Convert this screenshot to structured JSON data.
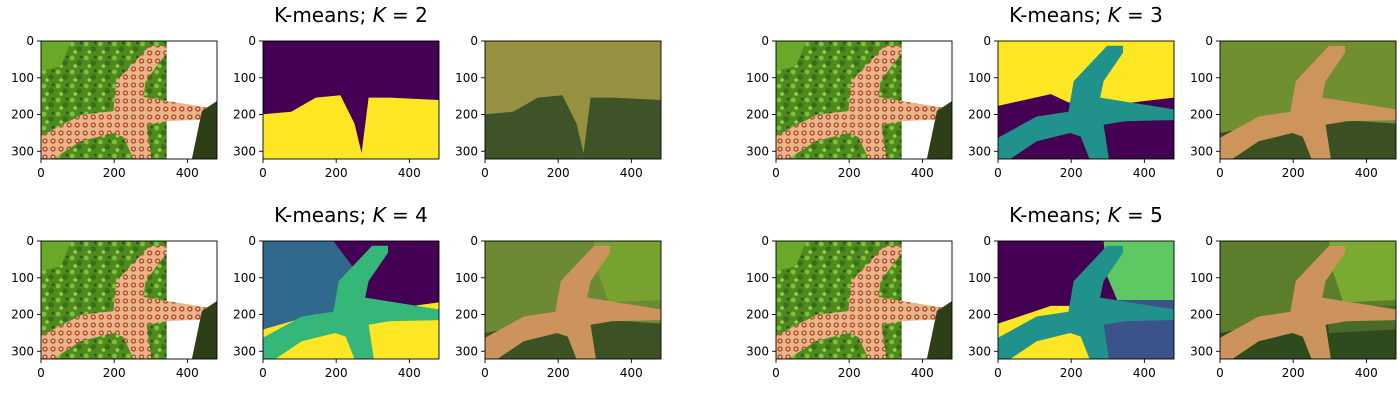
{
  "figure": {
    "groups": [
      {
        "title_prefix": "K-means; ",
        "title_var": "K",
        "title_eq": " = ",
        "title_k": "2"
      },
      {
        "title_prefix": "K-means; ",
        "title_var": "K",
        "title_eq": " = ",
        "title_k": "3"
      },
      {
        "title_prefix": "K-means; ",
        "title_var": "K",
        "title_eq": " = ",
        "title_k": "4"
      },
      {
        "title_prefix": "K-means; ",
        "title_var": "K",
        "title_eq": " = ",
        "title_k": "5"
      }
    ]
  },
  "chart_data": [
    {
      "type": "heatmap",
      "panel": "original image (K=2 group)",
      "image": "starfish-photo",
      "xticks": [
        "0",
        "200",
        "400"
      ],
      "yticks": [
        "0",
        "100",
        "200",
        "300"
      ],
      "xlim": [
        0,
        481
      ],
      "ylim": [
        321,
        0
      ]
    },
    {
      "type": "heatmap",
      "panel": "cluster labels K=2",
      "image": "label-map",
      "xticks": [
        "0",
        "200",
        "400"
      ],
      "yticks": [
        "0",
        "100",
        "200",
        "300"
      ],
      "xlim": [
        0,
        481
      ],
      "ylim": [
        321,
        0
      ],
      "colors": [
        "#440154",
        "#fde725"
      ]
    },
    {
      "type": "heatmap",
      "panel": "cluster means K=2",
      "image": "mean-color-map",
      "xticks": [
        "0",
        "200",
        "400"
      ],
      "yticks": [
        "0",
        "100",
        "200",
        "300"
      ],
      "xlim": [
        0,
        481
      ],
      "ylim": [
        321,
        0
      ],
      "colors": [
        "#969140",
        "#3f5328"
      ]
    },
    {
      "type": "heatmap",
      "panel": "original image (K=3 group)",
      "image": "starfish-photo",
      "xticks": [
        "0",
        "200",
        "400"
      ],
      "yticks": [
        "0",
        "100",
        "200",
        "300"
      ],
      "xlim": [
        0,
        481
      ],
      "ylim": [
        321,
        0
      ]
    },
    {
      "type": "heatmap",
      "panel": "cluster labels K=3",
      "image": "label-map",
      "xticks": [
        "0",
        "200",
        "400"
      ],
      "yticks": [
        "0",
        "100",
        "200",
        "300"
      ],
      "xlim": [
        0,
        481
      ],
      "ylim": [
        321,
        0
      ],
      "colors": [
        "#fde725",
        "#21918c",
        "#440154"
      ]
    },
    {
      "type": "heatmap",
      "panel": "cluster means K=3",
      "image": "mean-color-map",
      "xticks": [
        "0",
        "200",
        "400"
      ],
      "yticks": [
        "0",
        "100",
        "200",
        "300"
      ],
      "xlim": [
        0,
        481
      ],
      "ylim": [
        321,
        0
      ],
      "colors": [
        "#6f8f31",
        "#cd955c",
        "#3a4f22"
      ]
    },
    {
      "type": "heatmap",
      "panel": "original image (K=4 group)",
      "image": "starfish-photo",
      "xticks": [
        "0",
        "200",
        "400"
      ],
      "yticks": [
        "0",
        "100",
        "200",
        "300"
      ],
      "xlim": [
        0,
        481
      ],
      "ylim": [
        321,
        0
      ]
    },
    {
      "type": "heatmap",
      "panel": "cluster labels K=4",
      "image": "label-map",
      "xticks": [
        "0",
        "200",
        "400"
      ],
      "yticks": [
        "0",
        "100",
        "200",
        "300"
      ],
      "xlim": [
        0,
        481
      ],
      "ylim": [
        321,
        0
      ],
      "colors": [
        "#31688e",
        "#35b779",
        "#440154",
        "#fde725"
      ]
    },
    {
      "type": "heatmap",
      "panel": "cluster means K=4",
      "image": "mean-color-map",
      "xticks": [
        "0",
        "200",
        "400"
      ],
      "yticks": [
        "0",
        "100",
        "200",
        "300"
      ],
      "xlim": [
        0,
        481
      ],
      "ylim": [
        321,
        0
      ],
      "colors": [
        "#6b8a33",
        "#cd935c",
        "#77a22f",
        "#3d5224"
      ]
    },
    {
      "type": "heatmap",
      "panel": "original image (K=5 group)",
      "image": "starfish-photo",
      "xticks": [
        "0",
        "200",
        "400"
      ],
      "yticks": [
        "0",
        "100",
        "200",
        "300"
      ],
      "xlim": [
        0,
        481
      ],
      "ylim": [
        321,
        0
      ]
    },
    {
      "type": "heatmap",
      "panel": "cluster labels K=5",
      "image": "label-map",
      "xticks": [
        "0",
        "200",
        "400"
      ],
      "yticks": [
        "0",
        "100",
        "200",
        "300"
      ],
      "xlim": [
        0,
        481
      ],
      "ylim": [
        321,
        0
      ],
      "colors": [
        "#440154",
        "#21918c",
        "#5ec962",
        "#fde725",
        "#3b528b"
      ]
    },
    {
      "type": "heatmap",
      "panel": "cluster means K=5",
      "image": "mean-color-map",
      "xticks": [
        "0",
        "200",
        "400"
      ],
      "yticks": [
        "0",
        "100",
        "200",
        "300"
      ],
      "xlim": [
        0,
        481
      ],
      "ylim": [
        321,
        0
      ],
      "colors": [
        "#5c7d2c",
        "#cd935c",
        "#7aaa30",
        "#2f4a1c",
        "#4a6a28"
      ]
    }
  ]
}
